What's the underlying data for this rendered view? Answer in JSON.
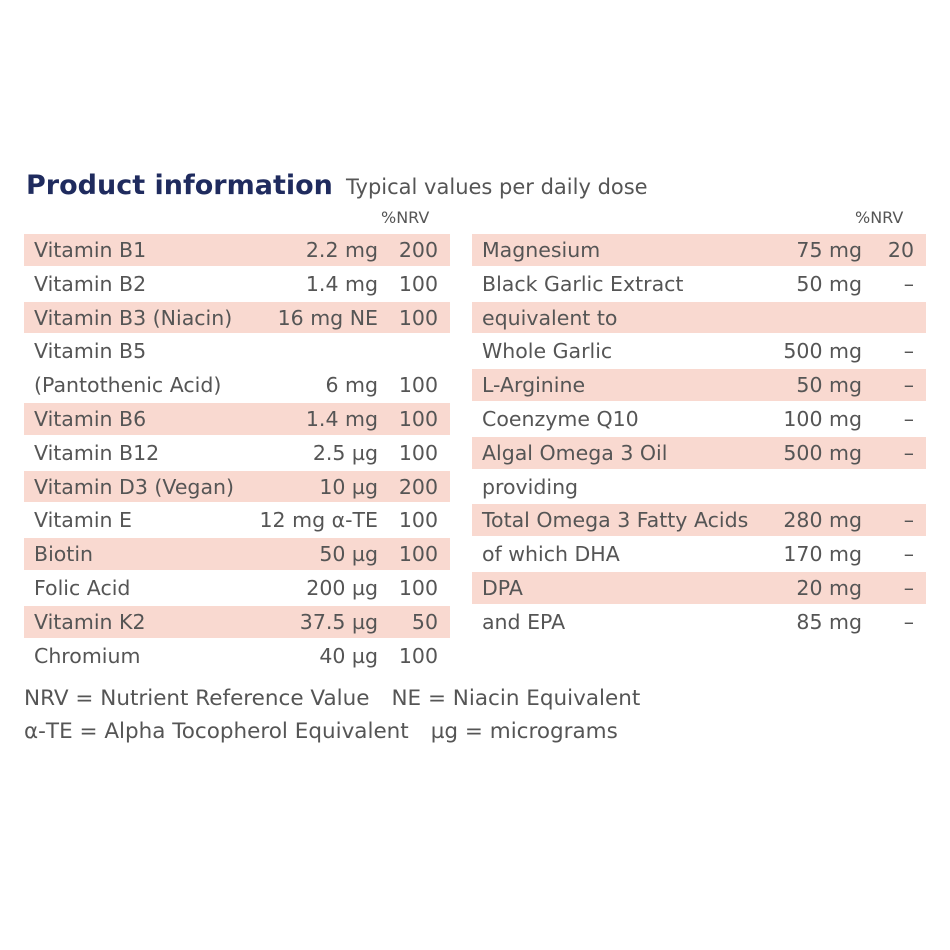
{
  "header": {
    "title": "Product information",
    "subtitle": "Typical values per daily dose"
  },
  "nrv_header": "%NRV",
  "left_table": [
    {
      "name": "Vitamin B1",
      "amount": "2.2 mg",
      "nrv": "200",
      "shaded": true
    },
    {
      "name": "Vitamin B2",
      "amount": "1.4 mg",
      "nrv": "100",
      "shaded": false
    },
    {
      "name": "Vitamin B3 (Niacin)",
      "amount": "16 mg NE",
      "nrv": "100",
      "shaded": true
    },
    {
      "name": "Vitamin B5",
      "amount": "",
      "nrv": "",
      "shaded": false
    },
    {
      "name": "(Pantothenic Acid)",
      "amount": "6 mg",
      "nrv": "100",
      "shaded": false
    },
    {
      "name": "Vitamin B6",
      "amount": "1.4 mg",
      "nrv": "100",
      "shaded": true
    },
    {
      "name": "Vitamin B12",
      "amount": "2.5 µg",
      "nrv": "100",
      "shaded": false
    },
    {
      "name": "Vitamin D3 (Vegan)",
      "amount": "10 µg",
      "nrv": "200",
      "shaded": true
    },
    {
      "name": "Vitamin E",
      "amount": "12 mg α-TE",
      "nrv": "100",
      "shaded": false
    },
    {
      "name": "Biotin",
      "amount": "50 µg",
      "nrv": "100",
      "shaded": true
    },
    {
      "name": "Folic Acid",
      "amount": "200 µg",
      "nrv": "100",
      "shaded": false
    },
    {
      "name": "Vitamin K2",
      "amount": "37.5 µg",
      "nrv": "50",
      "shaded": true
    },
    {
      "name": "Chromium",
      "amount": "40 µg",
      "nrv": "100",
      "shaded": false
    }
  ],
  "right_table": [
    {
      "name": "Magnesium",
      "amount": "75 mg",
      "nrv": "20",
      "shaded": true
    },
    {
      "name": "Black Garlic Extract",
      "amount": "50 mg",
      "nrv": "–",
      "shaded": false
    },
    {
      "name": "equivalent to",
      "amount": "",
      "nrv": "",
      "shaded": true
    },
    {
      "name": "Whole Garlic",
      "amount": "500 mg",
      "nrv": "–",
      "shaded": false
    },
    {
      "name": "L-Arginine",
      "amount": "50 mg",
      "nrv": "–",
      "shaded": true
    },
    {
      "name": "Coenzyme Q10",
      "amount": "100 mg",
      "nrv": "–",
      "shaded": false
    },
    {
      "name": "Algal Omega 3 Oil",
      "amount": "500 mg",
      "nrv": "–",
      "shaded": true
    },
    {
      "name": "providing",
      "amount": "",
      "nrv": "",
      "shaded": false
    },
    {
      "name": "Total Omega 3 Fatty Acids",
      "amount": "280 mg",
      "nrv": "–",
      "shaded": true
    },
    {
      "name": "of which DHA",
      "amount": "170 mg",
      "nrv": "–",
      "shaded": false
    },
    {
      "name": "DPA",
      "amount": "20 mg",
      "nrv": "–",
      "shaded": true
    },
    {
      "name": "and EPA",
      "amount": "85 mg",
      "nrv": "–",
      "shaded": false
    }
  ],
  "footnotes": {
    "line1_a": "NRV = Nutrient Reference Value",
    "line1_b": "NE = Niacin Equivalent",
    "line2_a": "α-TE = Alpha Tocopherol Equivalent",
    "line2_b": "µg = micrograms"
  },
  "colors": {
    "title": "#1f2b5e",
    "text": "#555555",
    "row_shade": "#f9d9d0"
  }
}
